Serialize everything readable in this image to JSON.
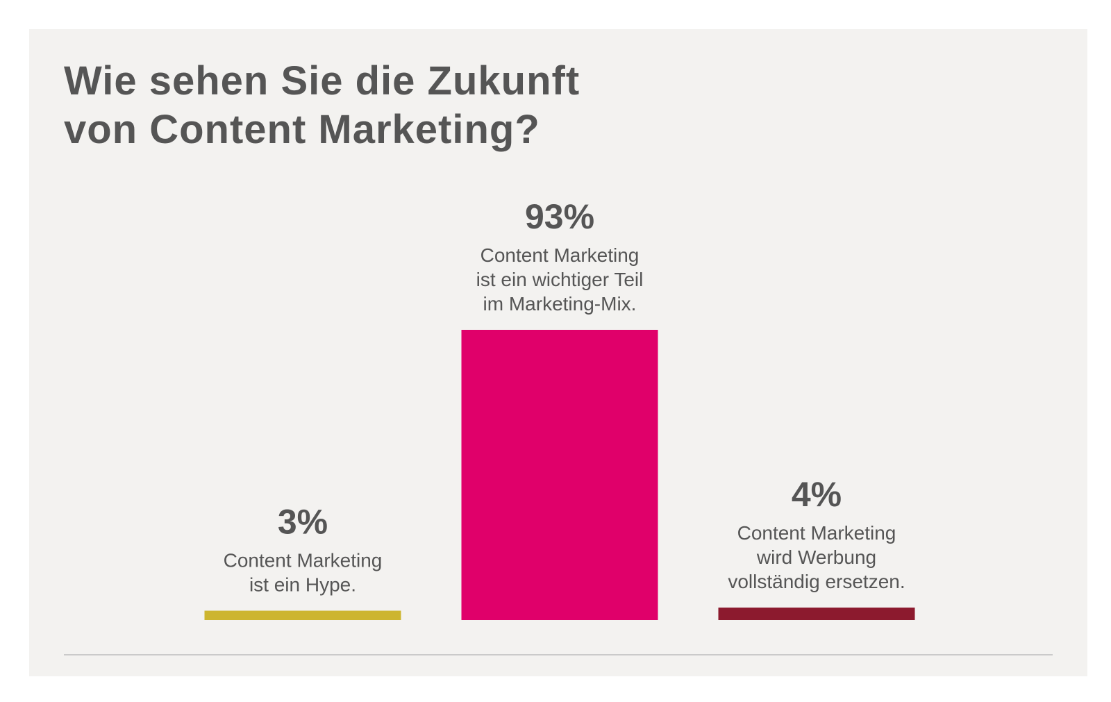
{
  "title_lines": [
    "Wie sehen Sie die Zukunft",
    "von Content Marketing?"
  ],
  "chart_data": {
    "type": "bar",
    "categories": [
      "Content Marketing ist ein Hype.",
      "Content Marketing ist ein wichtiger Teil im Marketing-Mix.",
      "Content Marketing wird Werbung vollständig ersetzen."
    ],
    "category_lines": [
      [
        "Content Marketing",
        "ist ein Hype."
      ],
      [
        "Content Marketing",
        "ist ein wichtiger Teil",
        "im Marketing-Mix."
      ],
      [
        "Content Marketing",
        "wird Werbung",
        "vollständig ersetzen."
      ]
    ],
    "values": [
      3,
      93,
      4
    ],
    "value_labels": [
      "3%",
      "93%",
      "4%"
    ],
    "colors": [
      "#cdb52f",
      "#e0006a",
      "#8c1a2e"
    ],
    "ylim": [
      0,
      93
    ],
    "grid": false,
    "legend": "none"
  }
}
